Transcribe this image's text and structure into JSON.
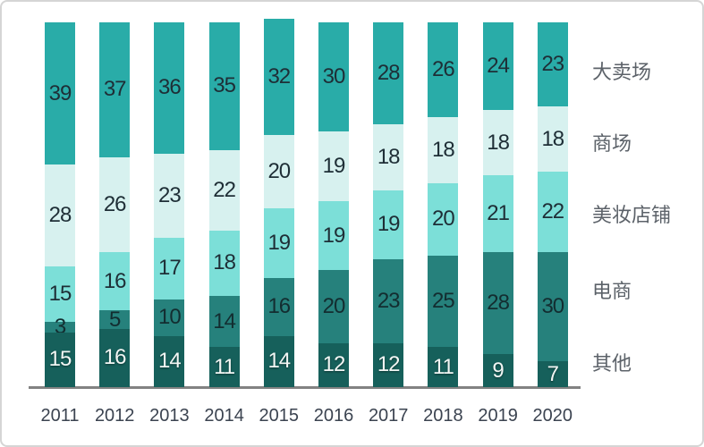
{
  "chart_data": {
    "type": "bar",
    "stacked": true,
    "orientation": "vertical",
    "title": "",
    "xlabel": "",
    "ylabel": "",
    "ylim": [
      0,
      101
    ],
    "grid": false,
    "legend_position": "right",
    "axis_line_color": "#828282",
    "value_labels_shown": true,
    "categories": [
      "2011",
      "2012",
      "2013",
      "2014",
      "2015",
      "2016",
      "2017",
      "2018",
      "2019",
      "2020"
    ],
    "series": [
      {
        "name": "大卖场",
        "color": "#29aca8",
        "label_color": "#1e2e36",
        "values": [
          39,
          37,
          36,
          35,
          32,
          30,
          28,
          26,
          24,
          23
        ]
      },
      {
        "name": "商场",
        "color": "#d7f1ef",
        "label_color": "#1e2e36",
        "values": [
          28,
          26,
          23,
          22,
          20,
          19,
          18,
          18,
          18,
          18
        ]
      },
      {
        "name": "美妆店铺",
        "color": "#7cdfd8",
        "label_color": "#1e2e36",
        "values": [
          15,
          16,
          17,
          18,
          19,
          19,
          19,
          20,
          21,
          22
        ]
      },
      {
        "name": "电商",
        "color": "#26817c",
        "label_color": "#132d30",
        "values": [
          3,
          5,
          10,
          14,
          16,
          20,
          23,
          25,
          28,
          30
        ]
      },
      {
        "name": "其他",
        "color": "#16605b",
        "label_color": "#f2f6f4",
        "values": [
          15,
          16,
          14,
          11,
          14,
          12,
          12,
          11,
          9,
          7
        ]
      }
    ]
  },
  "page": {
    "background_color": "#ffffff",
    "border_color": "#d5d5d5"
  }
}
